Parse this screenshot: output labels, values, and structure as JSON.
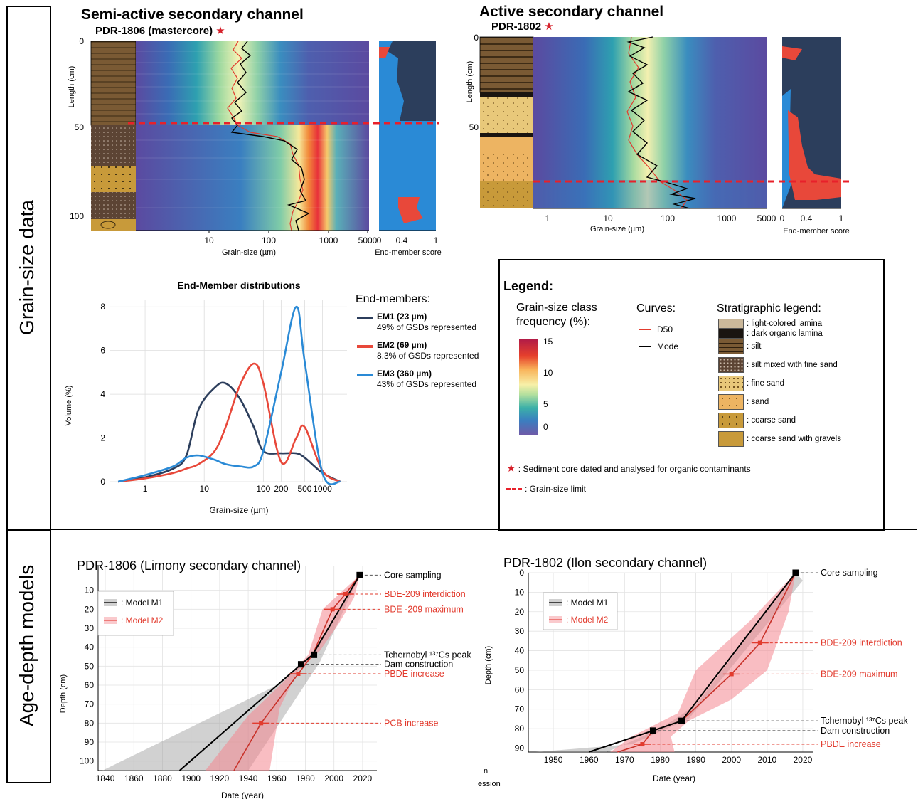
{
  "sections": {
    "grain": "Grain-size data",
    "age": "Age-depth models"
  },
  "panelA": {
    "title": "Semi-active secondary channel",
    "core": "PDR-1806 (mastercore)",
    "ylabel": "Length (cm)",
    "xlabel": "Grain-size (µm)",
    "emlabel": "End-member score",
    "yticks": [
      "0",
      "50",
      "100"
    ],
    "xticks": [
      "10",
      "100",
      "1000",
      "5000"
    ],
    "emticks": [
      "0",
      "0.4",
      "1"
    ]
  },
  "panelB": {
    "title": "Active secondary channel",
    "core": "PDR-1802",
    "ylabel": "Length (cm)",
    "xlabel": "Grain-size (µm)",
    "emlabel": "End-member score",
    "yticks": [
      "0",
      "50"
    ],
    "xticks": [
      "1",
      "10",
      "100",
      "1000",
      "5000"
    ],
    "emticks": [
      "0",
      "0.4",
      "1"
    ]
  },
  "emplot": {
    "title": "End-Member distributions",
    "ylabel": "Volume (%)",
    "xlabel": "Grain-size (µm)",
    "yticks": [
      "0",
      "2",
      "4",
      "6",
      "8"
    ],
    "xticks": [
      "1",
      "10",
      "100",
      "200",
      "500",
      "1000"
    ],
    "legend_title": "End-members:",
    "members": [
      {
        "name": "EM1 (23 µm)",
        "desc": "49% of GSDs represented",
        "color": "#2c3e5c"
      },
      {
        "name": "EM2 (69 µm)",
        "desc": "8.3% of GSDs represented",
        "color": "#e8483a"
      },
      {
        "name": "EM3 (360 µm)",
        "desc": "43% of GSDs represented",
        "color": "#2a8ad6"
      }
    ]
  },
  "legend": {
    "title": "Legend:",
    "freq_title": "Grain-size class frequency (%):",
    "freq_ticks": [
      "15",
      "10",
      "5",
      "0"
    ],
    "curves_title": "Curves:",
    "curves": [
      {
        "label": "D50",
        "color": "#e23b2e"
      },
      {
        "label": "Mode",
        "color": "#000000"
      }
    ],
    "strat_title": "Stratigraphic legend:",
    "strat": [
      ": light-colored lamina",
      ": dark organic lamina",
      ": silt",
      ": silt mixed with fine sand",
      ": fine sand",
      ": sand",
      ": coarse sand",
      ": coarse sand with gravels"
    ],
    "star_note": ": Sediment core dated and analysed for organic contaminants",
    "limit_note": ": Grain-size limit"
  },
  "age1": {
    "title": "PDR-1806 (Limony secondary channel)",
    "ylabel": "Depth (cm)",
    "xlabel": "Date (year)",
    "xticks": [
      "1840",
      "1860",
      "1880",
      "1900",
      "1920",
      "1940",
      "1960",
      "1980",
      "2000",
      "2020"
    ],
    "yticks": [
      "10",
      "20",
      "30",
      "40",
      "50",
      "60",
      "70",
      "80",
      "90",
      "100"
    ],
    "models": [
      {
        "label": ": Model M1"
      },
      {
        "label": ": Model M2"
      }
    ],
    "events": [
      {
        "label": "Core sampling",
        "red": false
      },
      {
        "label": "BDE-209 interdiction",
        "red": true
      },
      {
        "label": "BDE -209 maximum",
        "red": true
      },
      {
        "label": "Tchernobyl ¹³⁷Cs peak",
        "red": false
      },
      {
        "label": "Dam construction",
        "red": false
      },
      {
        "label": "PBDE increase",
        "red": true
      },
      {
        "label": "PCB increase",
        "red": true
      }
    ]
  },
  "age2": {
    "title": "PDR-1802 (Ilon secondary channel)",
    "ylabel": "Depth (cm)",
    "xlabel": "Date (year)",
    "xticks": [
      "1950",
      "1960",
      "1970",
      "1980",
      "1990",
      "2000",
      "2010",
      "2020"
    ],
    "yticks": [
      "0",
      "10",
      "20",
      "30",
      "40",
      "50",
      "60",
      "70",
      "80",
      "90"
    ],
    "models": [
      {
        "label": ": Model M1"
      },
      {
        "label": ": Model M2"
      }
    ],
    "events": [
      {
        "label": "Core sampling",
        "red": false
      },
      {
        "label": "BDE-209 interdiction",
        "red": true
      },
      {
        "label": "BDE-209 maximum",
        "red": true
      },
      {
        "label": "Tchernobyl ¹³⁷Cs peak",
        "red": false
      },
      {
        "label": "Dam construction",
        "red": false
      },
      {
        "label": "PBDE increase",
        "red": true
      }
    ],
    "stray": [
      "n",
      "ession"
    ]
  },
  "chart_data": [
    {
      "type": "line",
      "title": "End-Member distributions",
      "xlabel": "Grain-size (µm)",
      "ylabel": "Volume (%)",
      "xscale": "log",
      "ylim": [
        0,
        8
      ],
      "x": [
        0.35,
        1,
        3,
        5,
        8,
        15,
        23,
        40,
        69,
        100,
        200,
        360,
        500,
        1000,
        2000
      ],
      "series": [
        {
          "name": "EM1 (23 µm)",
          "values": [
            0,
            0.2,
            0.6,
            1.2,
            3.3,
            4.3,
            4.5,
            3.8,
            2.5,
            1.4,
            1.3,
            1.3,
            1.1,
            0.4,
            0
          ]
        },
        {
          "name": "EM2 (69 µm)",
          "values": [
            0,
            0.15,
            0.4,
            0.6,
            0.8,
            1.4,
            2.5,
            4.4,
            5.4,
            4.5,
            0.9,
            2.0,
            2.5,
            0.5,
            0
          ]
        },
        {
          "name": "EM3 (360 µm)",
          "values": [
            0,
            0.3,
            0.7,
            1.1,
            1.2,
            1.0,
            0.8,
            0.7,
            0.7,
            1.4,
            5.0,
            8.0,
            5.5,
            0.4,
            0
          ]
        }
      ]
    },
    {
      "type": "line",
      "title": "PDR-1806 (Limony secondary channel)",
      "xlabel": "Date (year)",
      "ylabel": "Depth (cm)",
      "xlim": [
        1835,
        2030
      ],
      "ylim": [
        105,
        0
      ],
      "series": [
        {
          "name": "Model M1",
          "points": [
            [
              2018,
              2
            ],
            [
              1985,
              44
            ],
            [
              1977,
              49
            ],
            [
              1892,
              105
            ]
          ]
        },
        {
          "name": "Model M2",
          "points": [
            [
              2018,
              2
            ],
            [
              2008,
              12
            ],
            [
              1999,
              20
            ],
            [
              1985,
              44
            ],
            [
              1975,
              54
            ],
            [
              1949,
              80
            ],
            [
              1930,
              105
            ]
          ]
        }
      ],
      "points": [
        {
          "label": "Core sampling",
          "x": 2018,
          "y": 2
        },
        {
          "label": "BDE-209 interdiction",
          "x": 2008,
          "y": 12
        },
        {
          "label": "BDE -209 maximum",
          "x": 1999,
          "y": 20
        },
        {
          "label": "Tchernobyl ¹³⁷Cs peak",
          "x": 1986,
          "y": 44
        },
        {
          "label": "Dam construction",
          "x": 1977,
          "y": 49
        },
        {
          "label": "PBDE increase",
          "x": 1975,
          "y": 54
        },
        {
          "label": "PCB increase",
          "x": 1949,
          "y": 80
        }
      ]
    },
    {
      "type": "line",
      "title": "PDR-1802 (Ilon secondary channel)",
      "xlabel": "Date (year)",
      "ylabel": "Depth (cm)",
      "xlim": [
        1943,
        2023
      ],
      "ylim": [
        92,
        0
      ],
      "series": [
        {
          "name": "Model M1",
          "points": [
            [
              2018,
              0
            ],
            [
              1986,
              76
            ],
            [
              1978,
              81
            ],
            [
              1960,
              92
            ]
          ]
        },
        {
          "name": "Model M2",
          "points": [
            [
              2018,
              0
            ],
            [
              2008,
              36
            ],
            [
              2000,
              52
            ],
            [
              1986,
              76
            ],
            [
              1978,
              81
            ],
            [
              1975,
              88
            ],
            [
              1968,
              92
            ]
          ]
        }
      ],
      "points": [
        {
          "label": "Core sampling",
          "x": 2018,
          "y": 0
        },
        {
          "label": "BDE-209 interdiction",
          "x": 2008,
          "y": 36
        },
        {
          "label": "BDE-209 maximum",
          "x": 2000,
          "y": 52
        },
        {
          "label": "Tchernobyl ¹³⁷Cs peak",
          "x": 1986,
          "y": 76
        },
        {
          "label": "Dam construction",
          "x": 1978,
          "y": 81
        },
        {
          "label": "PBDE increase",
          "x": 1975,
          "y": 88
        }
      ]
    }
  ]
}
